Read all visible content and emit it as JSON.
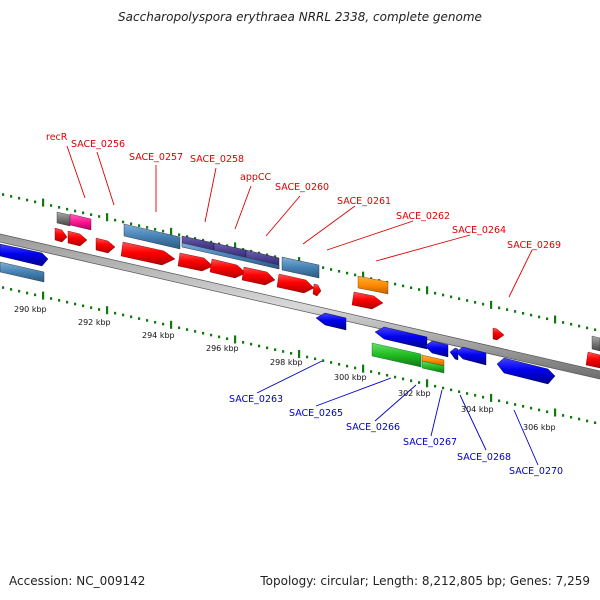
{
  "title": "Saccharopolyspora erythraea NRRL 2338, complete genome",
  "footer": {
    "accession": "Accession: NC_009142",
    "topology": "Topology: circular; Length: 8,212,805 bp; Genes: 7,259"
  },
  "scale_labels": [
    "290 kbp",
    "292 kbp",
    "294 kbp",
    "296 kbp",
    "298 kbp",
    "300 kbp",
    "302 kbp",
    "304 kbp",
    "306 kbp"
  ],
  "upper_gene_labels": [
    "recR",
    "SACE_0256",
    "SACE_0257",
    "SACE_0258",
    "appCC",
    "SACE_0260",
    "SACE_0261",
    "SACE_0262",
    "SACE_0264",
    "SACE_0269"
  ],
  "lower_gene_labels": [
    "SACE_0263",
    "SACE_0265",
    "SACE_0266",
    "SACE_0267",
    "SACE_0268",
    "SACE_0270"
  ],
  "colors": {
    "forward_genes": "#ff0000",
    "reverse_genes": "#0000ff",
    "upper_labels": "#e00000",
    "lower_labels": "#0000cc",
    "backbone": "#888888",
    "ticks": "#117711",
    "feature_steelblue": "#4682b4",
    "feature_indigo": "#483d8b",
    "feature_orange": "#ff8c00",
    "feature_green": "#22bb22",
    "feature_magenta": "#ff1493",
    "feature_grey": "#777777"
  }
}
